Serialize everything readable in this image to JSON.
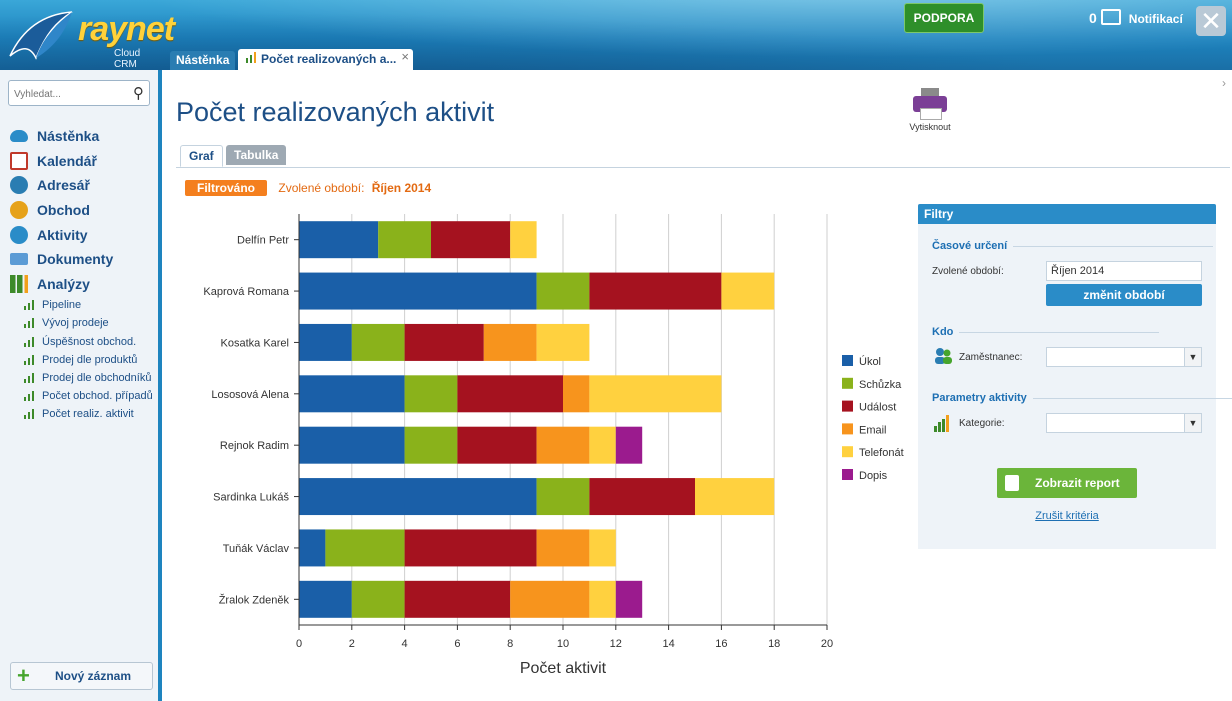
{
  "header": {
    "logo_text": "raynet",
    "logo_sub": "Cloud CRM",
    "support_label": "PODPORA",
    "notifications_count": "0",
    "notifications_label": "Notifikací"
  },
  "tabs": [
    {
      "label": "Nástěnka"
    },
    {
      "label": "Počet realizovaných a..."
    }
  ],
  "sidebar": {
    "search_placeholder": "Vyhledat...",
    "items": [
      {
        "label": "Nástěnka",
        "color": "#2a8cc8"
      },
      {
        "label": "Kalendář",
        "color": "#c0392b"
      },
      {
        "label": "Adresář",
        "color": "#2a7db2"
      },
      {
        "label": "Obchod",
        "color": "#e6a21a"
      },
      {
        "label": "Aktivity",
        "color": "#2a8cc8"
      },
      {
        "label": "Dokumenty",
        "color": "#5b9bd5"
      },
      {
        "label": "Analýzy",
        "color": "#3d8a2a"
      }
    ],
    "subitems": [
      {
        "label": "Pipeline"
      },
      {
        "label": "Vývoj prodeje"
      },
      {
        "label": "Úspěšnost obchod."
      },
      {
        "label": "Prodej dle produktů"
      },
      {
        "label": "Prodej dle obchodníků"
      },
      {
        "label": "Počet obchod. případů"
      },
      {
        "label": "Počet realiz. aktivit"
      }
    ],
    "new_record_label": "Nový záznam"
  },
  "main": {
    "title": "Počet realizovaných aktivit",
    "print_label": "Vytisknout",
    "view_tabs": [
      {
        "label": "Graf"
      },
      {
        "label": "Tabulka"
      }
    ],
    "filter_badge": "Filtrováno",
    "period_label": "Zvolené období:",
    "period_value": "Říjen 2014"
  },
  "chart_data": {
    "type": "bar",
    "orientation": "horizontal",
    "stacked": true,
    "categories": [
      "Delfín Petr",
      "Kaprová Romana",
      "Kosatka Karel",
      "Lososová Alena",
      "Rejnok Radim",
      "Sardinka Lukáš",
      "Tuňák Václav",
      "Žralok Zdeněk"
    ],
    "series": [
      {
        "name": "Úkol",
        "color": "#1a5fa8",
        "values": [
          3,
          9,
          2,
          4,
          4,
          9,
          1,
          2
        ]
      },
      {
        "name": "Schůzka",
        "color": "#8ab21b",
        "values": [
          2,
          2,
          2,
          2,
          2,
          2,
          3,
          2
        ]
      },
      {
        "name": "Událost",
        "color": "#a5121f",
        "values": [
          3,
          5,
          3,
          4,
          3,
          4,
          5,
          4
        ]
      },
      {
        "name": "Email",
        "color": "#f7941d",
        "values": [
          0,
          0,
          2,
          1,
          2,
          0,
          2,
          3
        ]
      },
      {
        "name": "Telefonát",
        "color": "#ffd13f",
        "values": [
          1,
          2,
          2,
          5,
          1,
          3,
          1,
          1
        ]
      },
      {
        "name": "Dopis",
        "color": "#9b1b8e",
        "values": [
          0,
          0,
          0,
          0,
          1,
          0,
          0,
          1
        ]
      }
    ],
    "xlabel": "Počet aktivit",
    "xlim": [
      0,
      20
    ],
    "xticks": [
      0,
      2,
      4,
      6,
      8,
      10,
      12,
      14,
      16,
      18,
      20
    ],
    "grid": true,
    "legend_position": "right"
  },
  "filters": {
    "title": "Filtry",
    "time_section": "Časové určení",
    "period_label": "Zvolené období:",
    "period_value": "Říjen 2014",
    "change_period_label": "změnit období",
    "who_section": "Kdo",
    "employee_label": "Zaměstnanec:",
    "employee_value": "",
    "activity_section": "Parametry aktivity",
    "category_label": "Kategorie:",
    "category_value": "",
    "show_report_label": "Zobrazit report",
    "cancel_label": "Zrušit kritéria"
  }
}
